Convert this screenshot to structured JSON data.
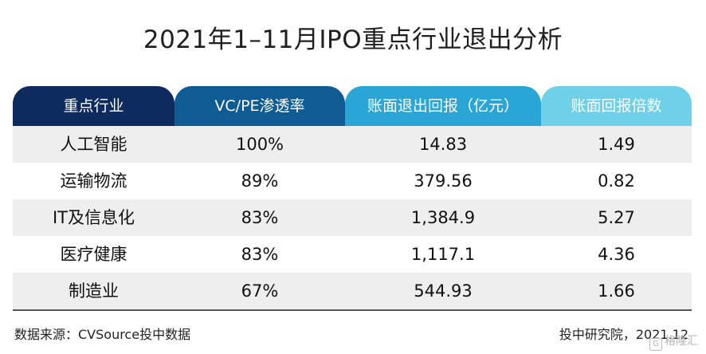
{
  "title": "2021年1–11月IPO重点行业退出分析",
  "chart_data": {
    "type": "table",
    "columns": [
      "重点行业",
      "VC/PE渗透率",
      "账面退出回报（亿元）",
      "账面回报倍数"
    ],
    "rows": [
      [
        "人工智能",
        "100%",
        "14.83",
        "1.49"
      ],
      [
        "运输物流",
        "89%",
        "379.56",
        "0.82"
      ],
      [
        "IT及信息化",
        "83%",
        "1,384.9",
        "5.27"
      ],
      [
        "医疗健康",
        "83%",
        "1,117.1",
        "4.36"
      ],
      [
        "制造业",
        "67%",
        "544.93",
        "1.66"
      ]
    ],
    "header_colors": [
      "#0d2b5e",
      "#0f5c95",
      "#2aa6d6",
      "#6fd0ea"
    ]
  },
  "footer": {
    "source": "数据来源：CVSource投中数据",
    "credit": "投中研究院，2021.12",
    "watermark": "格隆汇",
    "watermark_icon": "G"
  }
}
